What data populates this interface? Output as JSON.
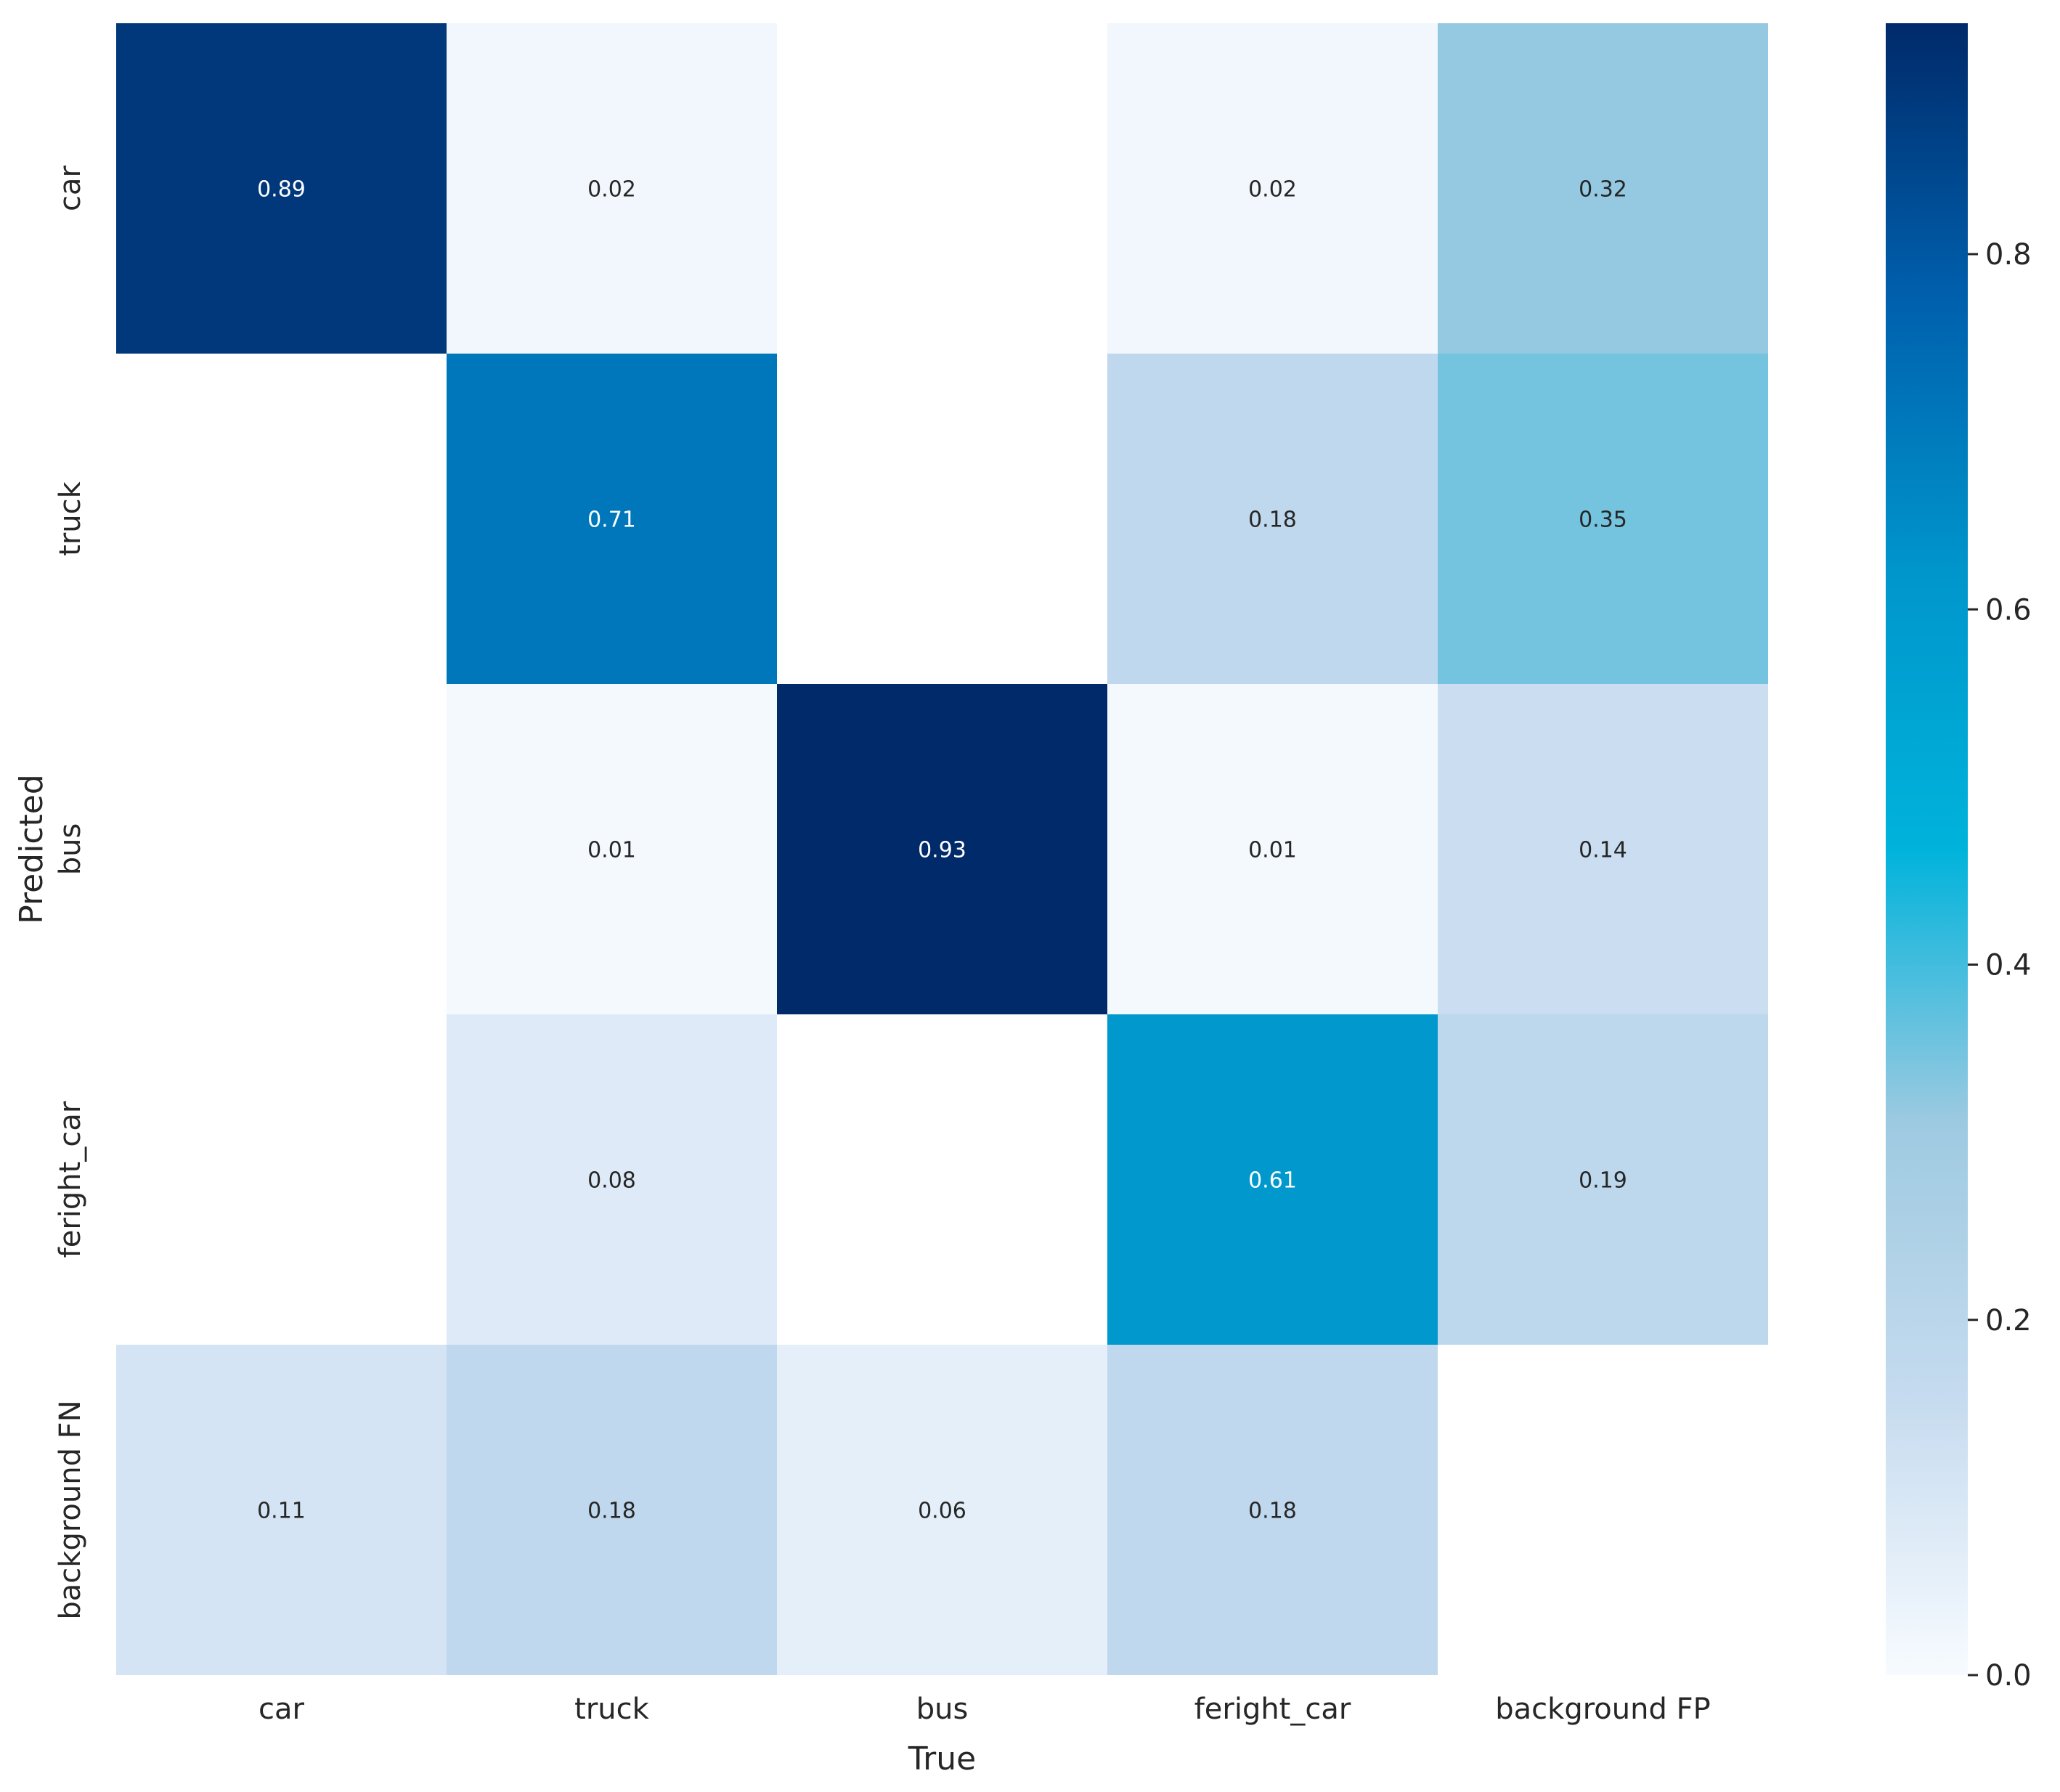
{
  "chart_data": {
    "type": "heatmap",
    "title": "",
    "xlabel": "True",
    "ylabel": "Predicted",
    "x_categories": [
      "car",
      "truck",
      "bus",
      "feright_car",
      "background FP"
    ],
    "y_categories": [
      "car",
      "truck",
      "bus",
      "feright_car",
      "background FN"
    ],
    "values": [
      [
        0.89,
        0.02,
        null,
        0.02,
        0.32
      ],
      [
        null,
        0.71,
        null,
        0.18,
        0.35
      ],
      [
        null,
        0.01,
        0.93,
        0.01,
        0.14
      ],
      [
        null,
        0.08,
        null,
        0.61,
        0.19
      ],
      [
        0.11,
        0.18,
        0.06,
        0.18,
        null
      ]
    ],
    "colorbar": {
      "min": 0.0,
      "max": 0.93,
      "ticks": [
        0.0,
        0.2,
        0.4,
        0.6,
        0.8
      ],
      "tick_labels": [
        "0.0",
        "0.2",
        "0.4",
        "0.6",
        "0.8"
      ],
      "colormap": "Blues",
      "stops": [
        "#f7fbff",
        "#c6dbef",
        "#9ecae1",
        "#00b3db",
        "#0096cc",
        "#0060ad",
        "#002a6a"
      ]
    },
    "grid": false,
    "legend": "colorbar-right"
  }
}
